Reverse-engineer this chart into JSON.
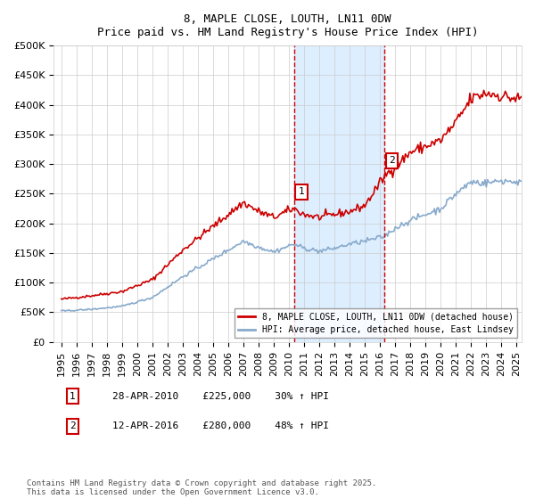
{
  "title": "8, MAPLE CLOSE, LOUTH, LN11 0DW",
  "subtitle": "Price paid vs. HM Land Registry's House Price Index (HPI)",
  "ylabel": "",
  "ylim": [
    0,
    500000
  ],
  "yticks": [
    0,
    50000,
    100000,
    150000,
    200000,
    250000,
    300000,
    350000,
    400000,
    450000,
    500000
  ],
  "background_color": "#ffffff",
  "shaded_region": [
    2010.3,
    2016.3
  ],
  "shaded_color": "#ddeeff",
  "line1_color": "#cc0000",
  "line2_color": "#88aacc",
  "vline_color": "#cc0000",
  "vline1_x": 2010.32,
  "vline2_x": 2016.29,
  "legend_line1": "8, MAPLE CLOSE, LOUTH, LN11 0DW (detached house)",
  "legend_line2": "HPI: Average price, detached house, East Lindsey",
  "annotation1_label": "1",
  "annotation1_date": "28-APR-2010",
  "annotation1_price": "£225,000",
  "annotation1_hpi": "30% ↑ HPI",
  "annotation2_label": "2",
  "annotation2_date": "12-APR-2016",
  "annotation2_price": "£280,000",
  "annotation2_hpi": "48% ↑ HPI",
  "footnote": "Contains HM Land Registry data © Crown copyright and database right 2025.\nThis data is licensed under the Open Government Licence v3.0.",
  "xmin": 1995,
  "xmax": 2025
}
